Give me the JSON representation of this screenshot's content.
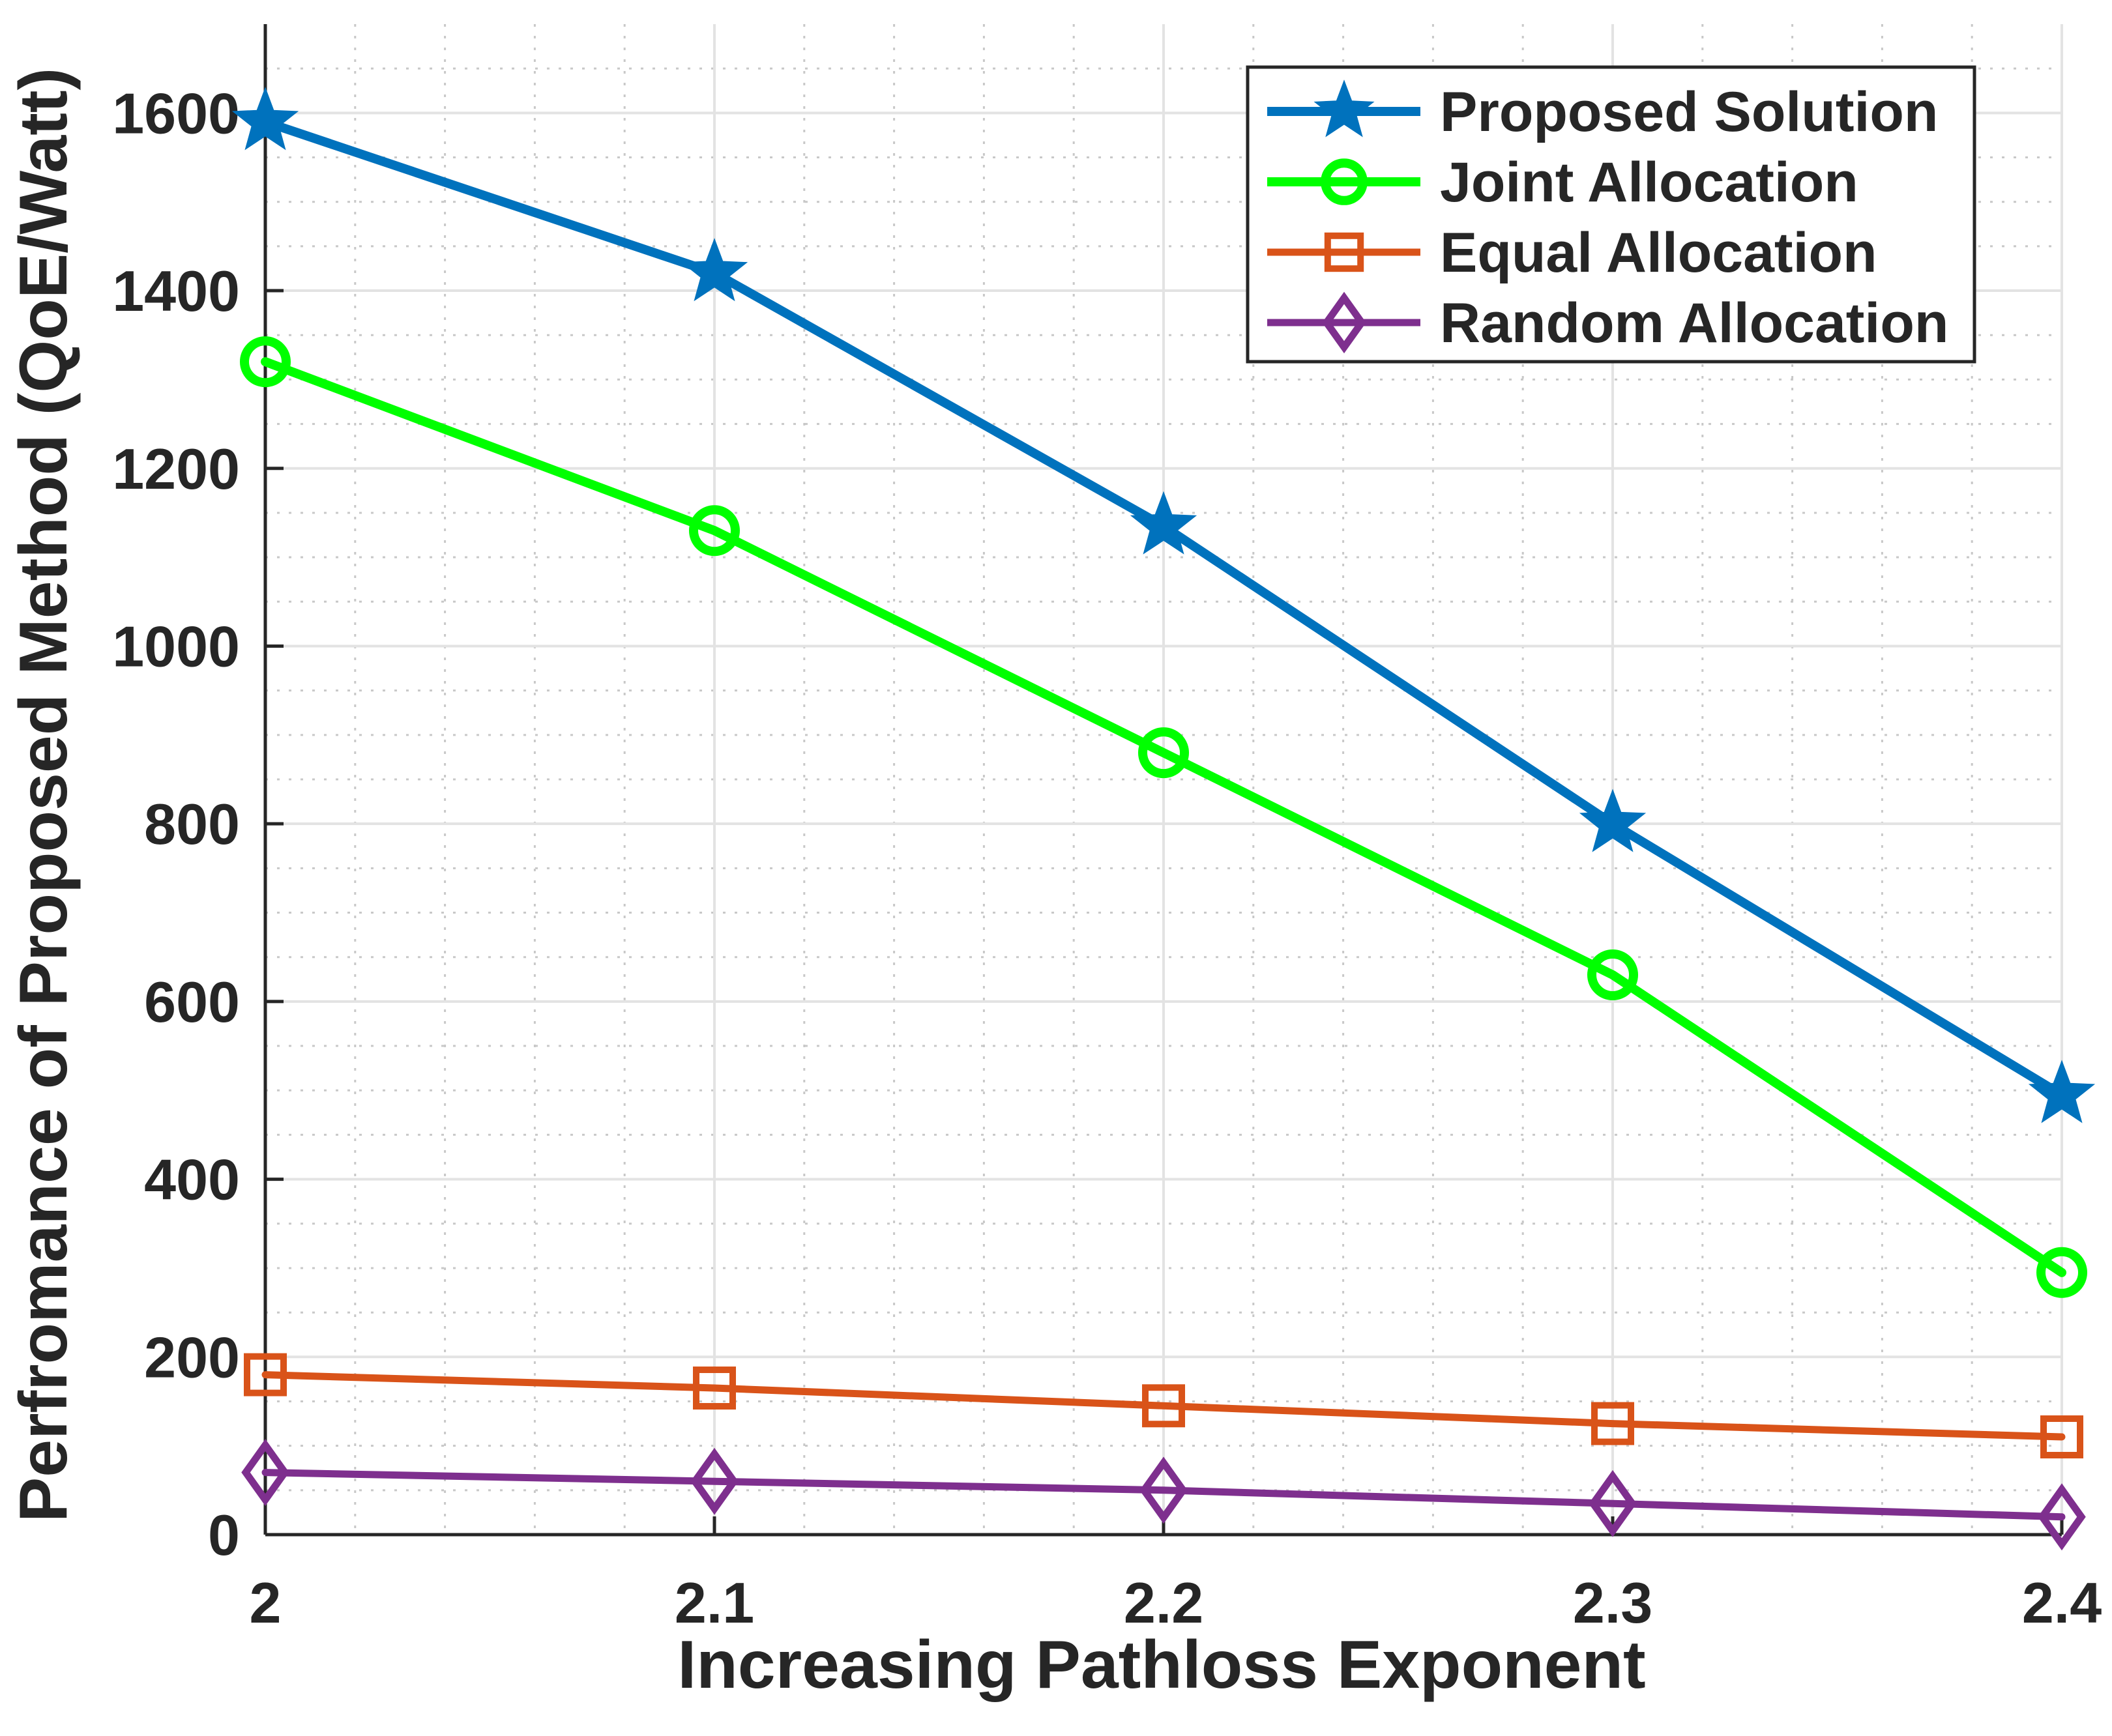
{
  "chart_data": {
    "type": "line",
    "title": "",
    "xlabel": "Increasing Pathloss Exponent",
    "ylabel": "Perfromance of Proposed Method (QoE/Watt)",
    "x": [
      2,
      2.1,
      2.2,
      2.3,
      2.4
    ],
    "xticks": [
      "2",
      "2.1",
      "2.2",
      "2.3",
      "2.4"
    ],
    "yticks": [
      "0",
      "200",
      "400",
      "600",
      "800",
      "1000",
      "1200",
      "1400",
      "1600"
    ],
    "xlim": [
      2,
      2.4
    ],
    "ylim": [
      0,
      1700
    ],
    "grid": true,
    "minor_grid": true,
    "legend_position": "top-right",
    "series": [
      {
        "name": "Proposed Solution",
        "color": "#0072bd",
        "marker": "star",
        "values": [
          1590,
          1420,
          1135,
          800,
          495
        ]
      },
      {
        "name": "Joint Allocation",
        "color": "#00ff00",
        "marker": "circle",
        "values": [
          1320,
          1130,
          880,
          630,
          295
        ]
      },
      {
        "name": "Equal Allocation",
        "color": "#d95319",
        "marker": "square",
        "values": [
          180,
          165,
          145,
          125,
          110
        ]
      },
      {
        "name": "Random Allocation",
        "color": "#7e2f8e",
        "marker": "diamond",
        "values": [
          70,
          60,
          50,
          35,
          20
        ]
      }
    ]
  }
}
